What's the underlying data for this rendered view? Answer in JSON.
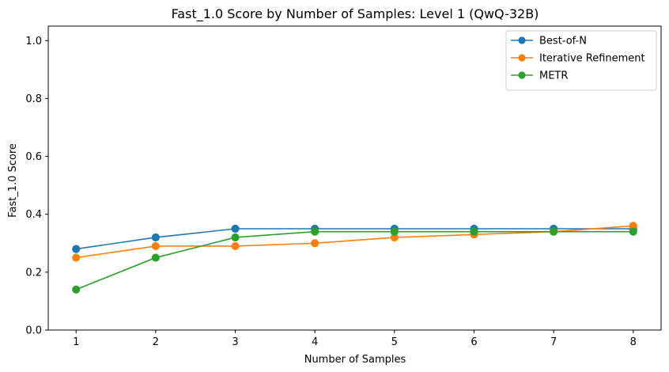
{
  "chart_data": {
    "type": "line",
    "title": "Fast_1.0 Score by Number of Samples: Level 1 (QwQ-32B)",
    "xlabel": "Number of Samples",
    "ylabel": "Fast_1.0 Score",
    "x": [
      1,
      2,
      3,
      4,
      5,
      6,
      7,
      8
    ],
    "xticks": [
      "1",
      "2",
      "3",
      "4",
      "5",
      "6",
      "7",
      "8"
    ],
    "xlim": [
      0.65,
      8.35
    ],
    "ylim": [
      0.0,
      1.05
    ],
    "yticks": [
      "0.0",
      "0.2",
      "0.4",
      "0.6",
      "0.8",
      "1.0"
    ],
    "ytick_values": [
      0.0,
      0.2,
      0.4,
      0.6,
      0.8,
      1.0
    ],
    "grid": false,
    "legend_position": "top-right",
    "series": [
      {
        "name": "Best-of-N",
        "color": "#1f77b4",
        "marker": "circle",
        "values": [
          0.28,
          0.32,
          0.35,
          0.35,
          0.35,
          0.35,
          0.35,
          0.35
        ]
      },
      {
        "name": "Iterative Refinement",
        "color": "#ff7f0e",
        "marker": "circle",
        "values": [
          0.25,
          0.29,
          0.29,
          0.3,
          0.32,
          0.33,
          0.34,
          0.36
        ]
      },
      {
        "name": "METR",
        "color": "#2ca02c",
        "marker": "circle",
        "values": [
          0.14,
          0.25,
          0.32,
          0.34,
          0.34,
          0.34,
          0.34,
          0.34
        ]
      }
    ]
  }
}
